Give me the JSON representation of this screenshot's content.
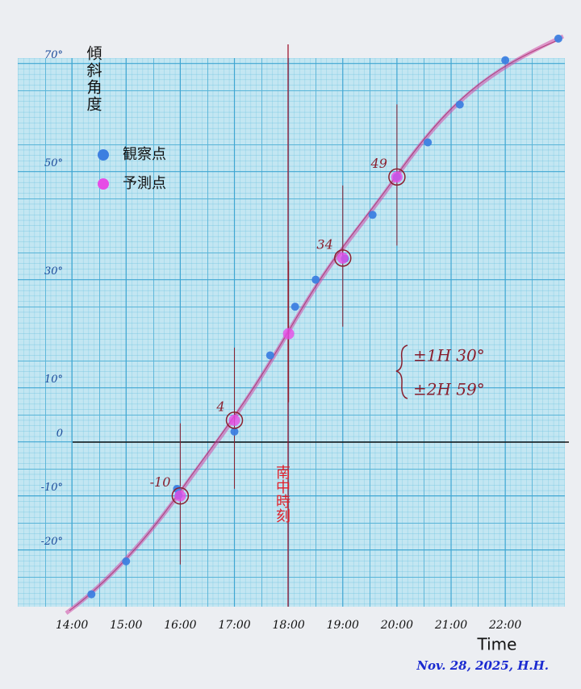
{
  "chart_data": {
    "type": "scatter",
    "ylabel": "傾斜角度",
    "xlabel": "Time",
    "xlim": [
      13,
      23.1
    ],
    "ylim": [
      -30.5,
      71
    ],
    "xticks": [
      {
        "value": 14,
        "label": "14:00"
      },
      {
        "value": 15,
        "label": "15:00"
      },
      {
        "value": 16,
        "label": "16:00"
      },
      {
        "value": 17,
        "label": "17:00"
      },
      {
        "value": 18,
        "label": "18:00"
      },
      {
        "value": 19,
        "label": "19:00"
      },
      {
        "value": 20,
        "label": "20:00"
      },
      {
        "value": 21,
        "label": "21:00"
      },
      {
        "value": 22,
        "label": "22:00"
      }
    ],
    "yticks": [
      {
        "value": 70,
        "label": "70°"
      },
      {
        "value": 50,
        "label": "50°"
      },
      {
        "value": 30,
        "label": "30°"
      },
      {
        "value": 10,
        "label": "10°"
      },
      0,
      {
        "value": -10,
        "label": "-10°"
      },
      {
        "value": -20,
        "label": "-20°"
      }
    ],
    "grid": true,
    "legend": "upper left",
    "series": [
      {
        "name": "観察点",
        "color": "#3d7fe0",
        "x": [
          14.36,
          15,
          15.94,
          15.97,
          17,
          17.66,
          18.12,
          18.5,
          19.04,
          19.55,
          20,
          20.57,
          21.16,
          22,
          22.98
        ],
        "values": [
          -28.2,
          -22.1,
          -8.7,
          -9.9,
          1.9,
          16,
          25,
          30,
          33.9,
          42,
          49,
          55.4,
          62.4,
          70.6,
          74.6
        ]
      },
      {
        "name": "予測点",
        "color": "#e64ce6",
        "x": [
          16,
          17,
          18,
          19,
          20
        ],
        "values": [
          -10,
          4,
          20,
          34,
          49
        ],
        "value_labels": [
          "-10",
          "4",
          null,
          "34",
          "49"
        ]
      }
    ],
    "annotations": [
      "南中時刻",
      "±1H 30°",
      "±2H 59°",
      "Nov. 28, 2025,  H.H."
    ]
  }
}
